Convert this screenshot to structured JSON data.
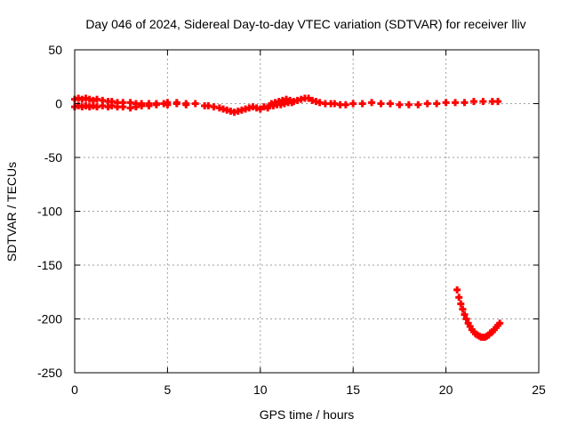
{
  "chart_data": {
    "type": "scatter",
    "title": "Day 046 of 2024, Sidereal Day-to-day VTEC variation (SDTVAR) for receiver lliv",
    "xlabel": "GPS time / hours",
    "ylabel": "SDTVAR / TECUs",
    "xlim": [
      0,
      25
    ],
    "ylim": [
      -250,
      50
    ],
    "xticks": [
      0,
      5,
      10,
      15,
      20,
      25
    ],
    "yticks": [
      -250,
      -200,
      -150,
      -100,
      -50,
      0,
      50
    ],
    "grid": true,
    "marker_color": "#ff0000",
    "series": [
      {
        "values": [
          [
            0.0,
            4
          ],
          [
            0.0,
            -3
          ],
          [
            0.2,
            5
          ],
          [
            0.2,
            -2
          ],
          [
            0.4,
            4
          ],
          [
            0.4,
            -3
          ],
          [
            0.6,
            5
          ],
          [
            0.6,
            -2
          ],
          [
            0.8,
            4
          ],
          [
            0.8,
            -3
          ],
          [
            1.0,
            3
          ],
          [
            1.0,
            -2
          ],
          [
            1.2,
            4
          ],
          [
            1.2,
            -3
          ],
          [
            1.5,
            3
          ],
          [
            1.5,
            -2
          ],
          [
            1.8,
            2
          ],
          [
            1.8,
            -3
          ],
          [
            2.0,
            2
          ],
          [
            2.0,
            -2
          ],
          [
            2.3,
            1
          ],
          [
            2.3,
            -3
          ],
          [
            2.6,
            1
          ],
          [
            2.6,
            -3
          ],
          [
            3.0,
            1
          ],
          [
            3.0,
            -4
          ],
          [
            3.3,
            0
          ],
          [
            3.3,
            -3
          ],
          [
            3.6,
            0
          ],
          [
            3.6,
            -2
          ],
          [
            4.0,
            0
          ],
          [
            4.0,
            -2
          ],
          [
            4.4,
            -1
          ],
          [
            4.4,
            0
          ],
          [
            4.8,
            0
          ],
          [
            5.0,
            1
          ],
          [
            5.0,
            -1
          ],
          [
            5.5,
            0
          ],
          [
            5.5,
            1
          ],
          [
            6.0,
            0
          ],
          [
            6.0,
            -1
          ],
          [
            6.5,
            0
          ],
          [
            7.0,
            -2
          ],
          [
            7.2,
            -2
          ],
          [
            7.5,
            -3
          ],
          [
            7.8,
            -4
          ],
          [
            8.0,
            -5
          ],
          [
            8.2,
            -6
          ],
          [
            8.4,
            -7
          ],
          [
            8.6,
            -8
          ],
          [
            8.8,
            -7
          ],
          [
            9.0,
            -6
          ],
          [
            9.2,
            -5
          ],
          [
            9.4,
            -4
          ],
          [
            9.6,
            -3
          ],
          [
            9.8,
            -4
          ],
          [
            10.0,
            -5
          ],
          [
            10.2,
            -3
          ],
          [
            10.4,
            -4
          ],
          [
            10.5,
            -2
          ],
          [
            10.6,
            0
          ],
          [
            10.7,
            -2
          ],
          [
            10.8,
            1
          ],
          [
            10.9,
            -1
          ],
          [
            11.0,
            2
          ],
          [
            11.1,
            -1
          ],
          [
            11.2,
            3
          ],
          [
            11.3,
            0
          ],
          [
            11.4,
            4
          ],
          [
            11.5,
            1
          ],
          [
            11.6,
            3
          ],
          [
            11.7,
            1
          ],
          [
            11.8,
            2
          ],
          [
            12.0,
            3
          ],
          [
            12.2,
            4
          ],
          [
            12.4,
            5
          ],
          [
            12.6,
            5
          ],
          [
            12.8,
            3
          ],
          [
            13.0,
            2
          ],
          [
            13.2,
            1
          ],
          [
            13.5,
            0
          ],
          [
            13.8,
            0
          ],
          [
            14.0,
            0
          ],
          [
            14.3,
            -1
          ],
          [
            14.6,
            -1
          ],
          [
            15.0,
            0
          ],
          [
            15.5,
            0
          ],
          [
            16.0,
            1
          ],
          [
            16.5,
            0
          ],
          [
            17.0,
            0
          ],
          [
            17.5,
            -1
          ],
          [
            18.0,
            -1
          ],
          [
            18.5,
            -1
          ],
          [
            19.0,
            0
          ],
          [
            19.5,
            0
          ],
          [
            20.0,
            1
          ],
          [
            20.5,
            1
          ],
          [
            21.0,
            1
          ],
          [
            21.5,
            2
          ],
          [
            22.0,
            2
          ],
          [
            22.5,
            2
          ],
          [
            22.8,
            2
          ],
          [
            20.6,
            -173
          ],
          [
            20.7,
            -180
          ],
          [
            20.8,
            -186
          ],
          [
            20.9,
            -191
          ],
          [
            21.0,
            -196
          ],
          [
            21.1,
            -200
          ],
          [
            21.2,
            -204
          ],
          [
            21.3,
            -207
          ],
          [
            21.4,
            -210
          ],
          [
            21.5,
            -212
          ],
          [
            21.6,
            -214
          ],
          [
            21.7,
            -215
          ],
          [
            21.8,
            -216
          ],
          [
            21.9,
            -217
          ],
          [
            22.0,
            -217
          ],
          [
            22.1,
            -217
          ],
          [
            22.2,
            -216
          ],
          [
            22.3,
            -215
          ],
          [
            22.4,
            -213
          ],
          [
            22.5,
            -212
          ],
          [
            22.6,
            -210
          ],
          [
            22.7,
            -208
          ],
          [
            22.8,
            -206
          ],
          [
            22.9,
            -204
          ]
        ]
      }
    ]
  }
}
